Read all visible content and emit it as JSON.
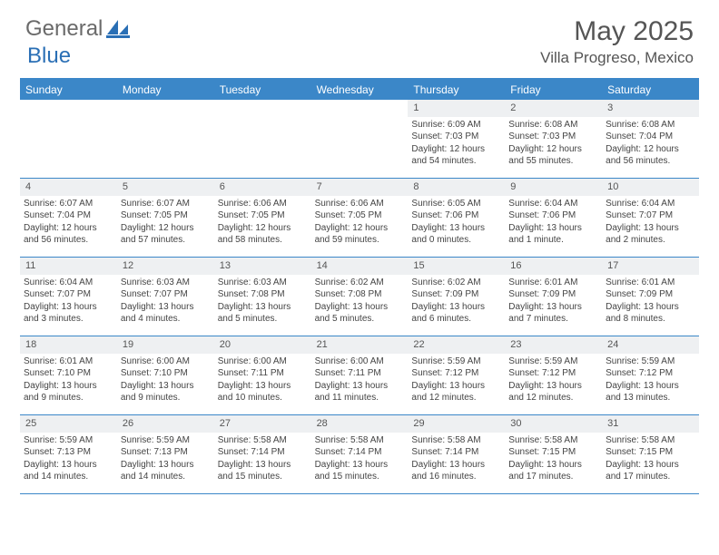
{
  "brand": {
    "part1": "General",
    "part2": "Blue"
  },
  "title": {
    "month": "May 2025",
    "location": "Villa Progreso, Mexico"
  },
  "dayNames": [
    "Sunday",
    "Monday",
    "Tuesday",
    "Wednesday",
    "Thursday",
    "Friday",
    "Saturday"
  ],
  "colors": {
    "accent": "#3b87c8",
    "header_bg": "#3b87c8",
    "daynum_bg": "#eef0f2"
  },
  "weeks": [
    [
      {
        "n": "",
        "lines": []
      },
      {
        "n": "",
        "lines": []
      },
      {
        "n": "",
        "lines": []
      },
      {
        "n": "",
        "lines": []
      },
      {
        "n": "1",
        "lines": [
          "Sunrise: 6:09 AM",
          "Sunset: 7:03 PM",
          "Daylight: 12 hours and 54 minutes."
        ]
      },
      {
        "n": "2",
        "lines": [
          "Sunrise: 6:08 AM",
          "Sunset: 7:03 PM",
          "Daylight: 12 hours and 55 minutes."
        ]
      },
      {
        "n": "3",
        "lines": [
          "Sunrise: 6:08 AM",
          "Sunset: 7:04 PM",
          "Daylight: 12 hours and 56 minutes."
        ]
      }
    ],
    [
      {
        "n": "4",
        "lines": [
          "Sunrise: 6:07 AM",
          "Sunset: 7:04 PM",
          "Daylight: 12 hours and 56 minutes."
        ]
      },
      {
        "n": "5",
        "lines": [
          "Sunrise: 6:07 AM",
          "Sunset: 7:05 PM",
          "Daylight: 12 hours and 57 minutes."
        ]
      },
      {
        "n": "6",
        "lines": [
          "Sunrise: 6:06 AM",
          "Sunset: 7:05 PM",
          "Daylight: 12 hours and 58 minutes."
        ]
      },
      {
        "n": "7",
        "lines": [
          "Sunrise: 6:06 AM",
          "Sunset: 7:05 PM",
          "Daylight: 12 hours and 59 minutes."
        ]
      },
      {
        "n": "8",
        "lines": [
          "Sunrise: 6:05 AM",
          "Sunset: 7:06 PM",
          "Daylight: 13 hours and 0 minutes."
        ]
      },
      {
        "n": "9",
        "lines": [
          "Sunrise: 6:04 AM",
          "Sunset: 7:06 PM",
          "Daylight: 13 hours and 1 minute."
        ]
      },
      {
        "n": "10",
        "lines": [
          "Sunrise: 6:04 AM",
          "Sunset: 7:07 PM",
          "Daylight: 13 hours and 2 minutes."
        ]
      }
    ],
    [
      {
        "n": "11",
        "lines": [
          "Sunrise: 6:04 AM",
          "Sunset: 7:07 PM",
          "Daylight: 13 hours and 3 minutes."
        ]
      },
      {
        "n": "12",
        "lines": [
          "Sunrise: 6:03 AM",
          "Sunset: 7:07 PM",
          "Daylight: 13 hours and 4 minutes."
        ]
      },
      {
        "n": "13",
        "lines": [
          "Sunrise: 6:03 AM",
          "Sunset: 7:08 PM",
          "Daylight: 13 hours and 5 minutes."
        ]
      },
      {
        "n": "14",
        "lines": [
          "Sunrise: 6:02 AM",
          "Sunset: 7:08 PM",
          "Daylight: 13 hours and 5 minutes."
        ]
      },
      {
        "n": "15",
        "lines": [
          "Sunrise: 6:02 AM",
          "Sunset: 7:09 PM",
          "Daylight: 13 hours and 6 minutes."
        ]
      },
      {
        "n": "16",
        "lines": [
          "Sunrise: 6:01 AM",
          "Sunset: 7:09 PM",
          "Daylight: 13 hours and 7 minutes."
        ]
      },
      {
        "n": "17",
        "lines": [
          "Sunrise: 6:01 AM",
          "Sunset: 7:09 PM",
          "Daylight: 13 hours and 8 minutes."
        ]
      }
    ],
    [
      {
        "n": "18",
        "lines": [
          "Sunrise: 6:01 AM",
          "Sunset: 7:10 PM",
          "Daylight: 13 hours and 9 minutes."
        ]
      },
      {
        "n": "19",
        "lines": [
          "Sunrise: 6:00 AM",
          "Sunset: 7:10 PM",
          "Daylight: 13 hours and 9 minutes."
        ]
      },
      {
        "n": "20",
        "lines": [
          "Sunrise: 6:00 AM",
          "Sunset: 7:11 PM",
          "Daylight: 13 hours and 10 minutes."
        ]
      },
      {
        "n": "21",
        "lines": [
          "Sunrise: 6:00 AM",
          "Sunset: 7:11 PM",
          "Daylight: 13 hours and 11 minutes."
        ]
      },
      {
        "n": "22",
        "lines": [
          "Sunrise: 5:59 AM",
          "Sunset: 7:12 PM",
          "Daylight: 13 hours and 12 minutes."
        ]
      },
      {
        "n": "23",
        "lines": [
          "Sunrise: 5:59 AM",
          "Sunset: 7:12 PM",
          "Daylight: 13 hours and 12 minutes."
        ]
      },
      {
        "n": "24",
        "lines": [
          "Sunrise: 5:59 AM",
          "Sunset: 7:12 PM",
          "Daylight: 13 hours and 13 minutes."
        ]
      }
    ],
    [
      {
        "n": "25",
        "lines": [
          "Sunrise: 5:59 AM",
          "Sunset: 7:13 PM",
          "Daylight: 13 hours and 14 minutes."
        ]
      },
      {
        "n": "26",
        "lines": [
          "Sunrise: 5:59 AM",
          "Sunset: 7:13 PM",
          "Daylight: 13 hours and 14 minutes."
        ]
      },
      {
        "n": "27",
        "lines": [
          "Sunrise: 5:58 AM",
          "Sunset: 7:14 PM",
          "Daylight: 13 hours and 15 minutes."
        ]
      },
      {
        "n": "28",
        "lines": [
          "Sunrise: 5:58 AM",
          "Sunset: 7:14 PM",
          "Daylight: 13 hours and 15 minutes."
        ]
      },
      {
        "n": "29",
        "lines": [
          "Sunrise: 5:58 AM",
          "Sunset: 7:14 PM",
          "Daylight: 13 hours and 16 minutes."
        ]
      },
      {
        "n": "30",
        "lines": [
          "Sunrise: 5:58 AM",
          "Sunset: 7:15 PM",
          "Daylight: 13 hours and 17 minutes."
        ]
      },
      {
        "n": "31",
        "lines": [
          "Sunrise: 5:58 AM",
          "Sunset: 7:15 PM",
          "Daylight: 13 hours and 17 minutes."
        ]
      }
    ]
  ]
}
